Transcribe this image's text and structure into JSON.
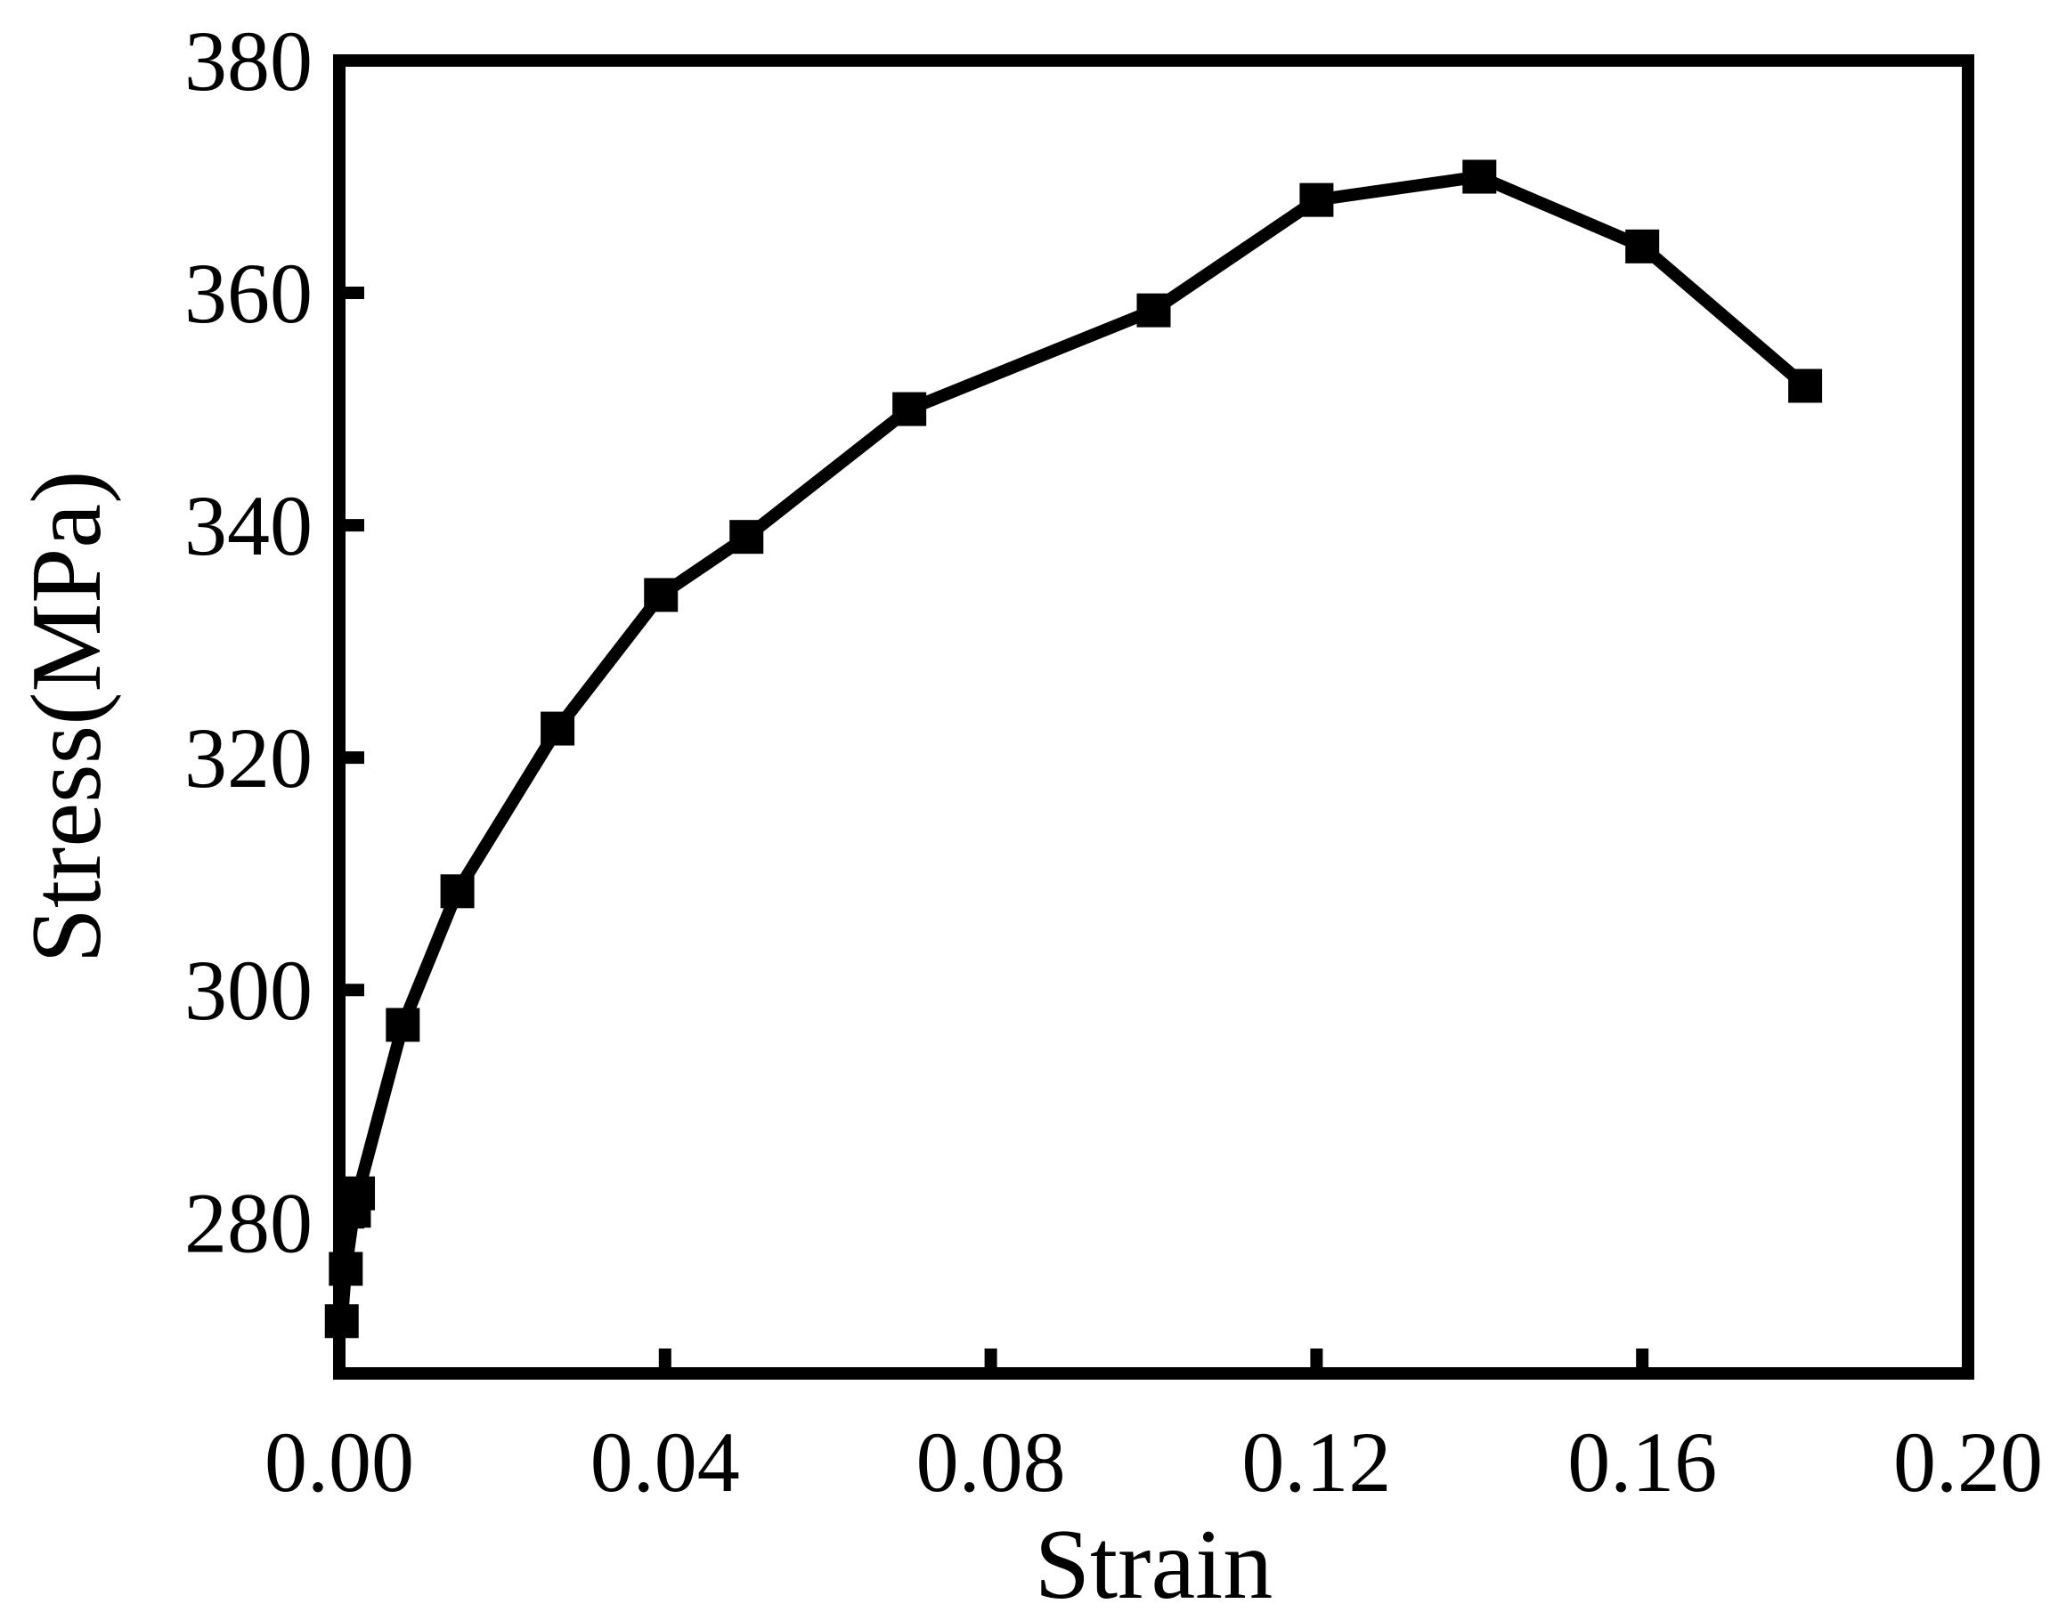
{
  "chart_data": {
    "type": "line",
    "title": "",
    "xlabel": "Strain",
    "ylabel": "Stress(MPa)",
    "xlim": [
      0,
      0.2
    ],
    "ylim": [
      267,
      380
    ],
    "x_ticks": [
      "0.00",
      "0.04",
      "0.08",
      "0.12",
      "0.16",
      "0.20"
    ],
    "x_tick_values": [
      0.0,
      0.04,
      0.08,
      0.12,
      0.16,
      0.2
    ],
    "y_ticks": [
      "280",
      "300",
      "320",
      "340",
      "360",
      "380"
    ],
    "y_tick_values": [
      280,
      300,
      320,
      340,
      360,
      380
    ],
    "grid": false,
    "legend": "none",
    "marker": "square",
    "color": "#000000",
    "series": [
      {
        "x": [
          0.0003,
          0.0008,
          0.0018,
          0.0023,
          0.0078,
          0.0145,
          0.0268,
          0.0395,
          0.05,
          0.07,
          0.1,
          0.12,
          0.14,
          0.16,
          0.18
        ],
        "y": [
          271.5,
          276.0,
          281.0,
          282.5,
          297.0,
          308.5,
          322.5,
          334.0,
          339.0,
          350.0,
          358.5,
          368.0,
          370.0,
          364.0,
          352.0
        ]
      }
    ]
  }
}
